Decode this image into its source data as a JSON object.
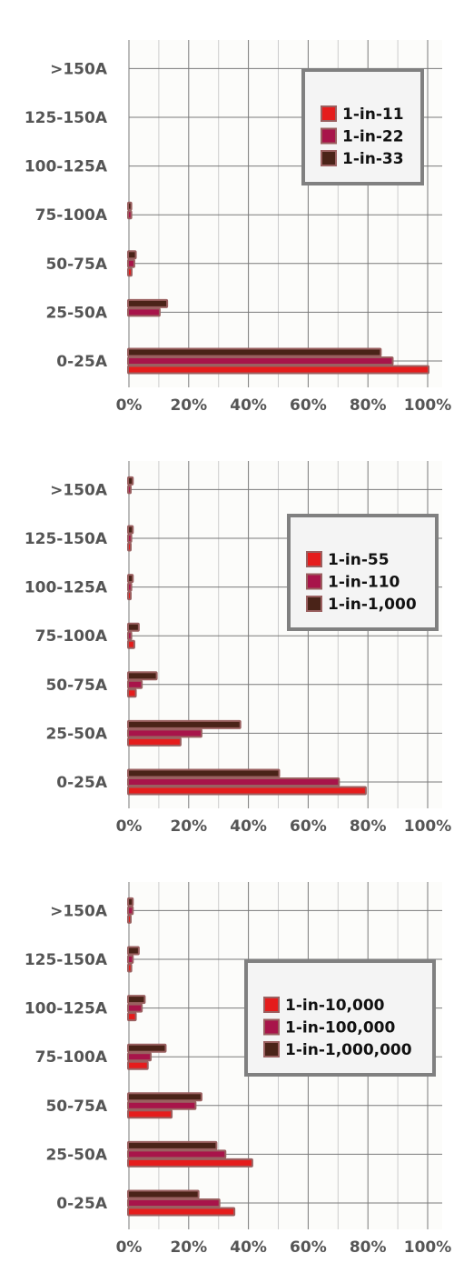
{
  "colors": {
    "series_1": "#e51c1c",
    "series_2": "#a8144a",
    "series_3": "#4a2318",
    "bar_outline": "#9a6060",
    "grid_major": "#7a7a7a",
    "grid_minor": "#cccccc",
    "plot_background": "#fcfcfa",
    "legend_border": "#808080",
    "legend_background": "#f4f4f4",
    "tick_text": "#555555"
  },
  "chart_data": [
    {
      "type": "bar",
      "orientation": "horizontal",
      "categories": [
        "0-25A",
        "25-50A",
        "50-75A",
        "75-100A",
        "100-125A",
        "125-150A",
        ">150A"
      ],
      "series": [
        {
          "name": "1-in-11",
          "values": [
            100,
            0,
            0.6,
            0,
            0,
            0,
            0
          ]
        },
        {
          "name": "1-in-22",
          "values": [
            88,
            10,
            1.5,
            0.5,
            0,
            0,
            0
          ]
        },
        {
          "name": "1-in-33",
          "values": [
            84,
            12.5,
            2,
            0.5,
            0,
            0,
            0
          ]
        }
      ],
      "xlim": [
        0,
        100
      ],
      "xticks": [
        "0%",
        "20%",
        "40%",
        "60%",
        "80%",
        "100%"
      ],
      "grid": true,
      "legend_position": "top-right"
    },
    {
      "type": "bar",
      "orientation": "horizontal",
      "categories": [
        "0-25A",
        "25-50A",
        "50-75A",
        "75-100A",
        "100-125A",
        "125-150A",
        ">150A"
      ],
      "series": [
        {
          "name": "1-in-55",
          "values": [
            79,
            17,
            2,
            1.5,
            0.3,
            0.3,
            0
          ]
        },
        {
          "name": "1-in-110",
          "values": [
            70,
            24,
            4,
            0.5,
            0.5,
            0.5,
            0.3
          ]
        },
        {
          "name": "1-in-1,000",
          "values": [
            50,
            37,
            9,
            3,
            1,
            1,
            1
          ]
        }
      ],
      "xlim": [
        0,
        100
      ],
      "xticks": [
        "0%",
        "20%",
        "40%",
        "60%",
        "80%",
        "100%"
      ],
      "grid": true,
      "legend_position": "top-right"
    },
    {
      "type": "bar",
      "orientation": "horizontal",
      "categories": [
        "0-25A",
        "25-50A",
        "50-75A",
        "75-100A",
        "100-125A",
        "125-150A",
        ">150A"
      ],
      "series": [
        {
          "name": "1-in-10,000",
          "values": [
            35,
            41,
            14,
            6,
            2,
            0.5,
            0.3
          ]
        },
        {
          "name": "1-in-100,000",
          "values": [
            30,
            32,
            22,
            7,
            4,
            1,
            1
          ]
        },
        {
          "name": "1-in-1,000,000",
          "values": [
            23,
            29,
            24,
            12,
            5,
            3,
            1
          ]
        }
      ],
      "xlim": [
        0,
        100
      ],
      "xticks": [
        "0%",
        "20%",
        "40%",
        "60%",
        "80%",
        "100%"
      ],
      "grid": true,
      "legend_position": "top-right"
    }
  ]
}
